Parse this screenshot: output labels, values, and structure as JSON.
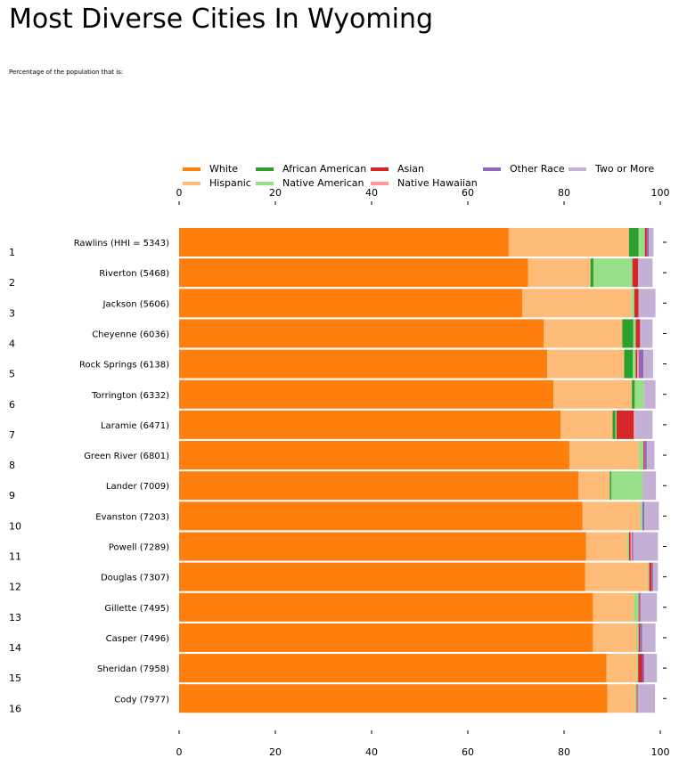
{
  "title": "Most Diverse Cities In Wyoming",
  "subtitle": "Percentage of the population that is:",
  "colors": {
    "White": "#ff7f0e",
    "Hispanic": "#ffbb78",
    "African American": "#2ca02c",
    "Native American": "#98df8a",
    "Asian": "#d62728",
    "Native Hawaiian": "#ff9896",
    "Other Race": "#9467bd",
    "Two or More": "#c5b0d5"
  },
  "chart_data": {
    "type": "bar",
    "orientation": "horizontal",
    "stacked": true,
    "title": "Most Diverse Cities In Wyoming",
    "subtitle": "Percentage of the population that is:",
    "categories": [
      "Rawlins (HHI = 5343)",
      "Riverton (5468)",
      "Jackson (5606)",
      "Cheyenne (6036)",
      "Rock Springs (6138)",
      "Torrington (6332)",
      "Laramie (6471)",
      "Green River (6801)",
      "Lander (7009)",
      "Evanston (7203)",
      "Powell (7289)",
      "Douglas (7307)",
      "Gillette (7495)",
      "Casper (7496)",
      "Sheridan (7958)",
      "Cody (7977)"
    ],
    "rank_labels": [
      "1",
      "2",
      "3",
      "4",
      "5",
      "6",
      "7",
      "8",
      "9",
      "10",
      "11",
      "12",
      "13",
      "14",
      "15",
      "16"
    ],
    "series": [
      {
        "name": "White",
        "values": [
          68.5,
          72.5,
          71.3,
          75.8,
          76.5,
          77.8,
          79.3,
          81.1,
          83.0,
          83.8,
          84.6,
          84.4,
          86.0,
          86.0,
          88.8,
          89.0
        ]
      },
      {
        "name": "Hispanic",
        "values": [
          25.0,
          13.0,
          22.7,
          16.3,
          16.0,
          16.3,
          10.8,
          14.5,
          6.5,
          12.0,
          8.5,
          13.0,
          8.5,
          9.0,
          6.3,
          5.8
        ]
      },
      {
        "name": "African American",
        "values": [
          2.0,
          0.6,
          0,
          2.3,
          1.8,
          0.6,
          0.6,
          0,
          0.3,
          0,
          0,
          0,
          0,
          0,
          0,
          0
        ]
      },
      {
        "name": "Native American",
        "values": [
          1.3,
          8.1,
          0.6,
          0.5,
          0.6,
          1.9,
          0.2,
          0.9,
          6.5,
          0.5,
          0.4,
          0.3,
          1.0,
          0.5,
          0.3,
          0.3
        ]
      },
      {
        "name": "Asian",
        "values": [
          0.4,
          1.2,
          0.9,
          0.9,
          0.3,
          0,
          3.6,
          0.2,
          0,
          0,
          0.3,
          0.5,
          0.2,
          0.3,
          0.9,
          0.2
        ]
      },
      {
        "name": "Native Hawaiian",
        "values": [
          0,
          0,
          0,
          0,
          0.3,
          0,
          0.2,
          0,
          0,
          0,
          0.3,
          0,
          0,
          0,
          0,
          0
        ]
      },
      {
        "name": "Other Race",
        "values": [
          0.4,
          0,
          0,
          0,
          1.0,
          0,
          0,
          0.5,
          0,
          0.4,
          0.3,
          0.3,
          0.2,
          0.4,
          0.4,
          0
        ]
      },
      {
        "name": "Two or More",
        "values": [
          1.0,
          3.0,
          3.5,
          2.6,
          2.0,
          2.4,
          3.7,
          1.6,
          2.8,
          3.0,
          5.1,
          1.0,
          3.4,
          2.8,
          2.6,
          3.6
        ]
      }
    ],
    "xlim": [
      0,
      100
    ],
    "xticks": [
      0,
      20,
      40,
      60,
      80,
      100
    ],
    "grid": false,
    "legend_placement": "top"
  }
}
